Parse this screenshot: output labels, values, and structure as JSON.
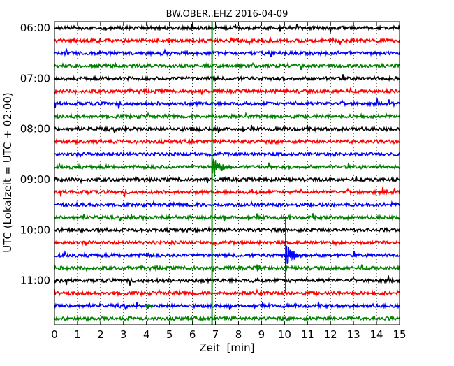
{
  "chart_data": {
    "type": "line",
    "title": "BW.OBER..EHZ 2016-04-09",
    "xlabel": "Zeit  [min]",
    "ylabel": "UTC (Lokalzeit = UTC + 02:00)",
    "xlim": [
      0,
      15
    ],
    "x_ticks": [
      0,
      1,
      2,
      3,
      4,
      5,
      6,
      7,
      8,
      9,
      10,
      11,
      12,
      13,
      14,
      15
    ],
    "row_start_utc": "06:00",
    "row_interval_min": 15,
    "row_count": 24,
    "y_tick_labels": [
      "06:00",
      "07:00",
      "08:00",
      "09:00",
      "10:00",
      "11:00"
    ],
    "grid": true,
    "trace_colors": [
      "#000000",
      "#ff0000",
      "#0000ff",
      "#008000"
    ],
    "marker_line": {
      "x": 6.85,
      "color": "#008000"
    },
    "events": [
      {
        "row_time": "08:45",
        "x": 6.85,
        "color": "#008000",
        "magnitude": "large"
      },
      {
        "row_time": "08:45",
        "x": 9.3,
        "color": "#008000",
        "magnitude": "small"
      },
      {
        "row_time": "10:30",
        "x": 10.05,
        "color": "#0000ff",
        "magnitude": "large"
      },
      {
        "row_time": "10:30",
        "x": 4.0,
        "color": "#0000ff",
        "magnitude": "small"
      },
      {
        "row_time": "10:45",
        "x": 8.8,
        "color": "#008000",
        "magnitude": "small"
      },
      {
        "row_time": "11:30",
        "x": 4.0,
        "color": "#008000",
        "magnitude": "small"
      }
    ]
  }
}
